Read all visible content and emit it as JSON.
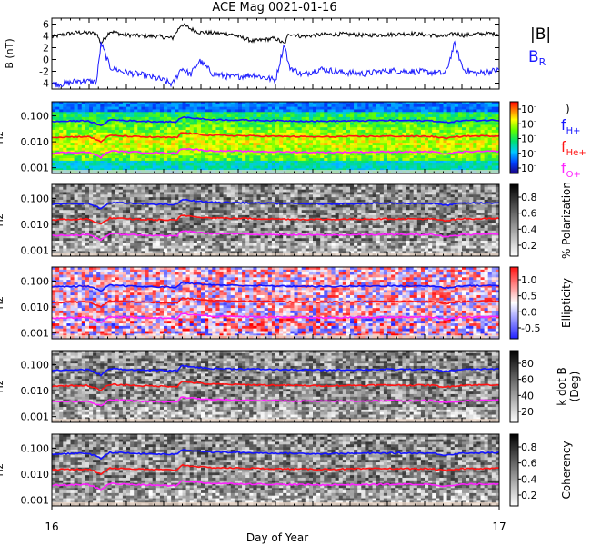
{
  "title": "ACE Mag 0021-01-16",
  "xlabel": "Day of Year",
  "x_ticks": [
    "16",
    "17"
  ],
  "colors": {
    "B_total": "#000000",
    "B_R": "#1a1aff",
    "f_H": "#1414ff",
    "f_He": "#ff1414",
    "f_O": "#ff22ff"
  },
  "legend_top": {
    "total": "|B|",
    "radial": "B",
    "radial_sub": "R"
  },
  "legend_freq": [
    {
      "main": "f",
      "sub": "H+"
    },
    {
      "main": "f",
      "sub": "He+"
    },
    {
      "main": "f",
      "sub": "O+"
    }
  ],
  "chart_data": [
    {
      "type": "line",
      "panel": "magnetic-field",
      "ylabel": "B (nT)",
      "ylim": [
        -5,
        7
      ],
      "y_ticks": [
        "6",
        "4",
        "2",
        "0",
        "-2",
        "-4"
      ],
      "x_day": [
        16.0,
        16.03,
        16.06,
        16.1,
        16.11,
        16.13,
        16.16,
        16.2,
        16.24,
        16.27,
        16.29,
        16.31,
        16.33,
        16.36,
        16.4,
        16.45,
        16.5,
        16.52,
        16.53,
        16.56,
        16.6,
        16.65,
        16.7,
        16.75,
        16.8,
        16.85,
        16.88,
        16.9,
        16.92,
        16.95,
        16.98,
        17.0
      ],
      "series": [
        {
          "name": "|B|",
          "values": [
            3.8,
            4.3,
            4.6,
            4.4,
            2.7,
            4.8,
            4.2,
            4.0,
            3.9,
            3.6,
            6.0,
            5.2,
            4.6,
            4.5,
            4.3,
            3.1,
            3.6,
            2.6,
            4.4,
            3.9,
            4.2,
            4.3,
            4.1,
            4.2,
            4.4,
            4.1,
            3.9,
            4.4,
            4.1,
            4.3,
            4.4,
            4.3
          ]
        },
        {
          "name": "B_R",
          "values": [
            -4.2,
            -4.1,
            -3.6,
            -3.8,
            2.8,
            -1.3,
            -2.1,
            -2.6,
            -3.3,
            -4.2,
            -1.4,
            -2.6,
            -0.2,
            -2.4,
            -3.0,
            -2.6,
            -3.5,
            2.7,
            -1.2,
            -2.6,
            -1.6,
            -2.2,
            -2.4,
            -1.9,
            -2.0,
            -2.2,
            -2.4,
            2.6,
            -1.7,
            -2.4,
            -2.0,
            -1.8
          ]
        }
      ]
    },
    {
      "type": "heatmap",
      "panel": "power",
      "ylabel": "Hz",
      "yscale": "log",
      "y_ticks": [
        "0.100",
        "0.010",
        "0.001"
      ],
      "colorbar_ticks": [
        "10",
        "10",
        "10",
        "10",
        "10"
      ],
      "colorscale": "rainbow"
    },
    {
      "type": "heatmap",
      "panel": "polarization",
      "ylabel": "Hz",
      "yscale": "log",
      "y_ticks": [
        "0.100",
        "0.010",
        "0.001"
      ],
      "colorbar_label": "% Polarization",
      "colorbar_ticks": [
        "0.8",
        "0.6",
        "0.4",
        "0.2"
      ],
      "colorscale": "grayscale"
    },
    {
      "type": "heatmap",
      "panel": "ellipticity",
      "ylabel": "Hz",
      "yscale": "log",
      "y_ticks": [
        "0.100",
        "0.010",
        "0.001"
      ],
      "colorbar_label": "Ellipticity",
      "colorbar_ticks": [
        "1.0",
        "0.5",
        "0.0",
        "-0.5"
      ],
      "colorscale": "blue-white-red"
    },
    {
      "type": "heatmap",
      "panel": "k-dot-b",
      "ylabel": "Hz",
      "yscale": "log",
      "y_ticks": [
        "0.100",
        "0.010",
        "0.001"
      ],
      "colorbar_label": "k dot B",
      "colorbar_label_2": "(Deg)",
      "colorbar_ticks": [
        "80",
        "60",
        "40",
        "20"
      ],
      "colorscale": "grayscale"
    },
    {
      "type": "heatmap",
      "panel": "coherency",
      "ylabel": "Hz",
      "yscale": "log",
      "y_ticks": [
        "0.100",
        "0.010",
        "0.001"
      ],
      "colorbar_label": "Coherency",
      "colorbar_ticks": [
        "0.8",
        "0.6",
        "0.4",
        "0.2"
      ],
      "colorscale": "grayscale"
    },
    {
      "type": "line",
      "panel": "gyrofrequencies",
      "ylabel": "Hz",
      "yscale": "log",
      "x_day": [
        16.0,
        16.08,
        16.11,
        16.13,
        16.2,
        16.28,
        16.29,
        16.35,
        16.5,
        16.6,
        16.75,
        16.85,
        16.88,
        16.92,
        17.0
      ],
      "series": [
        {
          "name": "fH+",
          "values": [
            0.06,
            0.065,
            0.04,
            0.07,
            0.062,
            0.058,
            0.09,
            0.072,
            0.065,
            0.062,
            0.066,
            0.065,
            0.055,
            0.066,
            0.068
          ]
        },
        {
          "name": "fHe+",
          "values": [
            0.015,
            0.016,
            0.01,
            0.0175,
            0.0155,
            0.0145,
            0.0225,
            0.018,
            0.0162,
            0.0155,
            0.0165,
            0.0162,
            0.0137,
            0.0165,
            0.017
          ]
        },
        {
          "name": "fO+",
          "values": [
            0.00375,
            0.004,
            0.0025,
            0.0044,
            0.0039,
            0.0036,
            0.0056,
            0.0045,
            0.0041,
            0.0039,
            0.0041,
            0.0041,
            0.0034,
            0.0041,
            0.0043
          ]
        }
      ]
    }
  ]
}
